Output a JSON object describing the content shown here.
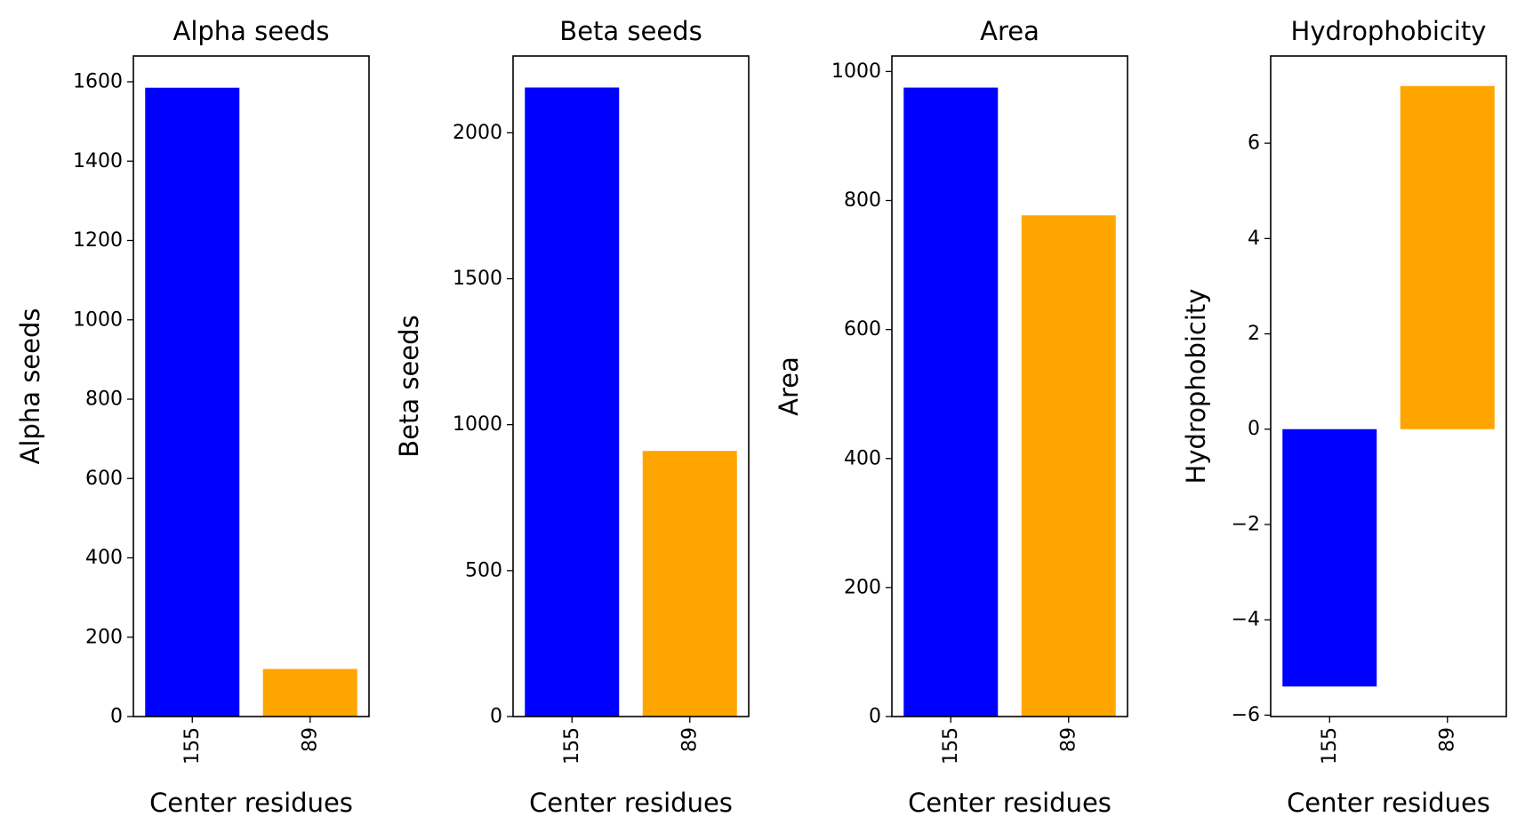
{
  "chart_data": [
    {
      "type": "bar",
      "title": "Alpha seeds",
      "xlabel": "Center residues",
      "ylabel": "Alpha seeds",
      "categories": [
        "155",
        "89"
      ],
      "values": [
        1585,
        120
      ],
      "colors": [
        "#0000ff",
        "#ffa500"
      ],
      "ylim": [
        0,
        1665
      ],
      "yticks": [
        0,
        200,
        400,
        600,
        800,
        1000,
        1200,
        1400,
        1600
      ],
      "ytick_labels": [
        "0",
        "200",
        "400",
        "600",
        "800",
        "1000",
        "1200",
        "1400",
        "1600"
      ],
      "grid": false,
      "legend": "none"
    },
    {
      "type": "bar",
      "title": "Beta seeds",
      "xlabel": "Center residues",
      "ylabel": "Beta seeds",
      "categories": [
        "155",
        "89"
      ],
      "values": [
        2155,
        910
      ],
      "colors": [
        "#0000ff",
        "#ffa500"
      ],
      "ylim": [
        0,
        2263
      ],
      "yticks": [
        0,
        500,
        1000,
        1500,
        2000
      ],
      "ytick_labels": [
        "0",
        "500",
        "1000",
        "1500",
        "2000"
      ],
      "grid": false,
      "legend": "none"
    },
    {
      "type": "bar",
      "title": "Area",
      "xlabel": "Center residues",
      "ylabel": "Area",
      "categories": [
        "155",
        "89"
      ],
      "values": [
        975,
        777
      ],
      "colors": [
        "#0000ff",
        "#ffa500"
      ],
      "ylim": [
        0,
        1024
      ],
      "yticks": [
        0,
        200,
        400,
        600,
        800,
        1000
      ],
      "ytick_labels": [
        "0",
        "200",
        "400",
        "600",
        "800",
        "1000"
      ],
      "grid": false,
      "legend": "none"
    },
    {
      "type": "bar",
      "title": "Hydrophobicity",
      "xlabel": "Center residues",
      "ylabel": "Hydrophobicity",
      "categories": [
        "155",
        "89"
      ],
      "values": [
        -5.4,
        7.2
      ],
      "colors": [
        "#0000ff",
        "#ffa500"
      ],
      "ylim": [
        -6.03,
        7.83
      ],
      "yticks": [
        -6,
        -4,
        -2,
        0,
        2,
        4,
        6
      ],
      "ytick_labels": [
        "−6",
        "−4",
        "−2",
        "0",
        "2",
        "4",
        "6"
      ],
      "grid": false,
      "legend": "none"
    }
  ]
}
